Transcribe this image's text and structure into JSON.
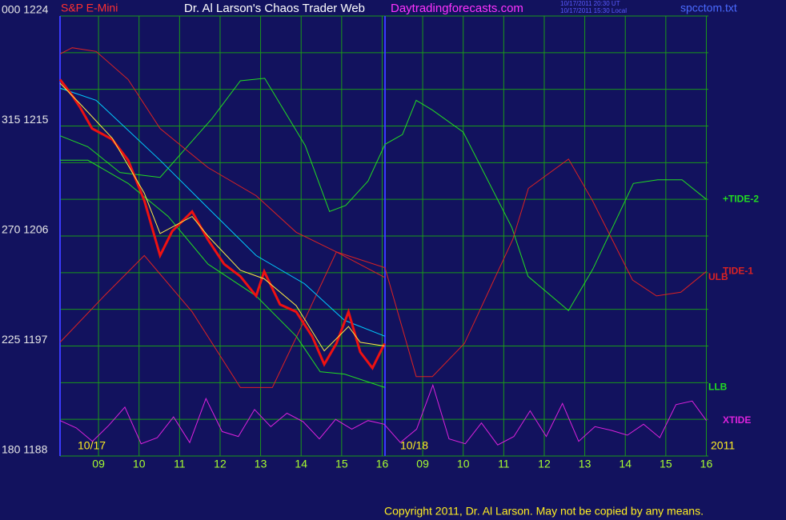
{
  "chart_data": {
    "type": "line",
    "symbol": "S&P E-Mini",
    "title": "Dr. Al Larson's Chaos Trader Web",
    "site": "Daytradingforecasts.com",
    "timestamps": [
      "10/17/2011 20:30 UT",
      "10/17/2011 15:30 Local"
    ],
    "file": "spcctom.txt",
    "copyright": "Copyright 2011, Dr. Al Larson. May not be copied by any means.",
    "day_labels": [
      "10/17",
      "10/18",
      "2011"
    ],
    "xlim": [
      0.05,
      16.05
    ],
    "xticks": [
      {
        "value": 1,
        "label": "09"
      },
      {
        "value": 2,
        "label": "10"
      },
      {
        "value": 3,
        "label": "11"
      },
      {
        "value": 4,
        "label": "12"
      },
      {
        "value": 5,
        "label": "13"
      },
      {
        "value": 6,
        "label": "14"
      },
      {
        "value": 7,
        "label": "15"
      },
      {
        "value": 8,
        "label": "16"
      },
      {
        "value": 9,
        "label": "09"
      },
      {
        "value": 10,
        "label": "10"
      },
      {
        "value": 11,
        "label": "11"
      },
      {
        "value": 12,
        "label": "12"
      },
      {
        "value": 13,
        "label": "13"
      },
      {
        "value": 14,
        "label": "14"
      },
      {
        "value": 15,
        "label": "15"
      },
      {
        "value": 16,
        "label": "16"
      }
    ],
    "day_separator": 8.07,
    "ylim": [
      1188,
      1224
    ],
    "yticks": [
      {
        "value": 1224,
        "label": "000 1224"
      },
      {
        "value": 1215,
        "label": "315 1215"
      },
      {
        "value": 1206,
        "label": "270 1206"
      },
      {
        "value": 1197,
        "label": "225 1197"
      },
      {
        "value": 1188,
        "label": "180 1188"
      }
    ],
    "ygrid": [
      1224,
      1221,
      1218,
      1215,
      1212,
      1209,
      1206,
      1203,
      1200,
      1197,
      1194,
      1191,
      1188
    ],
    "grid": true,
    "series": [
      {
        "name": "+TIDE-2",
        "color": "#22dd22",
        "x": [
          0.05,
          0.74,
          1.53,
          2.52,
          3.8,
          4.5,
          5.1,
          6.1,
          6.7,
          7.1,
          7.65,
          8.07,
          8.5,
          8.84,
          9.24,
          10.0,
          11.2,
          11.6,
          12.6,
          13.2,
          14.2,
          14.8,
          15.4,
          16.0
        ],
        "values": [
          1214.2,
          1213.3,
          1211.2,
          1210.8,
          1215.6,
          1218.7,
          1218.9,
          1213.4,
          1208.0,
          1208.5,
          1210.5,
          1213.5,
          1214.3,
          1217.1,
          1216.3,
          1214.5,
          1206.7,
          1202.7,
          1199.9,
          1203.3,
          1210.3,
          1210.6,
          1210.6,
          1209.0
        ]
      },
      {
        "name": "TIDE-1",
        "color": "#dd2222",
        "x": [
          0.05,
          1.14,
          2.13,
          3.31,
          4.5,
          5.29,
          6.08,
          6.87,
          8.07,
          8.84,
          9.24,
          10.03,
          11.22,
          11.61,
          12.6,
          13.19,
          14.18,
          14.77,
          15.37,
          16.0
        ],
        "values": [
          1197.3,
          1201.1,
          1204.4,
          1199.8,
          1193.6,
          1193.6,
          1199.1,
          1204.7,
          1203.4,
          1194.5,
          1194.5,
          1197.2,
          1205.7,
          1209.9,
          1212.3,
          1208.9,
          1202.4,
          1201.1,
          1201.4,
          1203.1
        ]
      },
      {
        "name": "ULB",
        "color": "#dd2222",
        "x": [
          0.05,
          0.35,
          0.94,
          1.73,
          2.52,
          3.7,
          4.89,
          5.88,
          6.87,
          8.07
        ],
        "values": [
          1220.9,
          1221.4,
          1221.1,
          1218.8,
          1214.8,
          1211.6,
          1209.3,
          1206.3,
          1204.7,
          1202.6
        ]
      },
      {
        "name": "LLB",
        "color": "#22dd22",
        "x": [
          0.05,
          0.74,
          1.73,
          2.72,
          3.7,
          4.89,
          5.88,
          6.47,
          7.07,
          8.07
        ],
        "values": [
          1212.2,
          1212.2,
          1210.3,
          1207.6,
          1203.7,
          1201.1,
          1197.8,
          1194.9,
          1194.7,
          1193.6
        ]
      },
      {
        "color": "#00ccff",
        "x": [
          0.05,
          0.94,
          2.52,
          3.7,
          4.89,
          6.08,
          7.07,
          8.07
        ],
        "values": [
          1218.1,
          1217.1,
          1212.2,
          1208.3,
          1204.4,
          1202.1,
          1199.1,
          1197.8
        ]
      },
      {
        "color": "#ee1111",
        "x": [
          0.05,
          0.35,
          0.55,
          0.84,
          1.34,
          1.73,
          2.13,
          2.52,
          2.82,
          3.31,
          3.7,
          4.1,
          4.5,
          4.89,
          5.09,
          5.48,
          5.88,
          6.27,
          6.57,
          6.87,
          7.17,
          7.46,
          7.76,
          8.06
        ],
        "values": [
          1218.8,
          1217.5,
          1216.5,
          1214.8,
          1213.9,
          1212.2,
          1208.9,
          1204.4,
          1206.4,
          1208.0,
          1205.7,
          1203.7,
          1202.7,
          1201.1,
          1203.1,
          1200.4,
          1199.8,
          1197.8,
          1195.5,
          1197.2,
          1199.8,
          1196.5,
          1195.2,
          1197.2
        ]
      },
      {
        "color": "#ffee44",
        "x": [
          0.05,
          0.55,
          1.34,
          2.13,
          2.52,
          3.31,
          3.7,
          4.5,
          5.09,
          5.88,
          6.57,
          7.17,
          7.46,
          8.06
        ],
        "values": [
          1218.5,
          1216.8,
          1214.0,
          1209.5,
          1206.2,
          1207.6,
          1206.0,
          1203.2,
          1202.5,
          1200.3,
          1196.6,
          1198.6,
          1197.3,
          1197.0
        ]
      },
      {
        "name": "XTIDE",
        "color": "#dd22dd",
        "x": [
          0.05,
          0.45,
          0.85,
          1.25,
          1.65,
          2.05,
          2.45,
          2.85,
          3.25,
          3.65,
          4.05,
          4.45,
          4.85,
          5.25,
          5.65,
          6.05,
          6.45,
          6.85,
          7.25,
          7.65,
          8.05,
          8.45,
          8.85,
          9.25,
          9.65,
          10.05,
          10.45,
          10.85,
          11.25,
          11.65,
          12.05,
          12.45,
          12.85,
          13.25,
          13.65,
          14.05,
          14.45,
          14.85,
          15.25,
          15.65,
          16.0
        ],
        "values": [
          1190.9,
          1190.3,
          1189.2,
          1190.5,
          1192.0,
          1189.0,
          1189.5,
          1191.2,
          1189.1,
          1192.7,
          1190.0,
          1189.6,
          1191.8,
          1190.4,
          1191.5,
          1190.8,
          1189.4,
          1191.0,
          1190.2,
          1190.9,
          1190.6,
          1189.1,
          1190.2,
          1193.8,
          1189.4,
          1189.0,
          1190.7,
          1188.9,
          1189.6,
          1191.7,
          1189.6,
          1192.3,
          1189.2,
          1190.4,
          1190.1,
          1189.7,
          1190.6,
          1189.5,
          1192.2,
          1192.5,
          1190.9
        ]
      }
    ]
  }
}
